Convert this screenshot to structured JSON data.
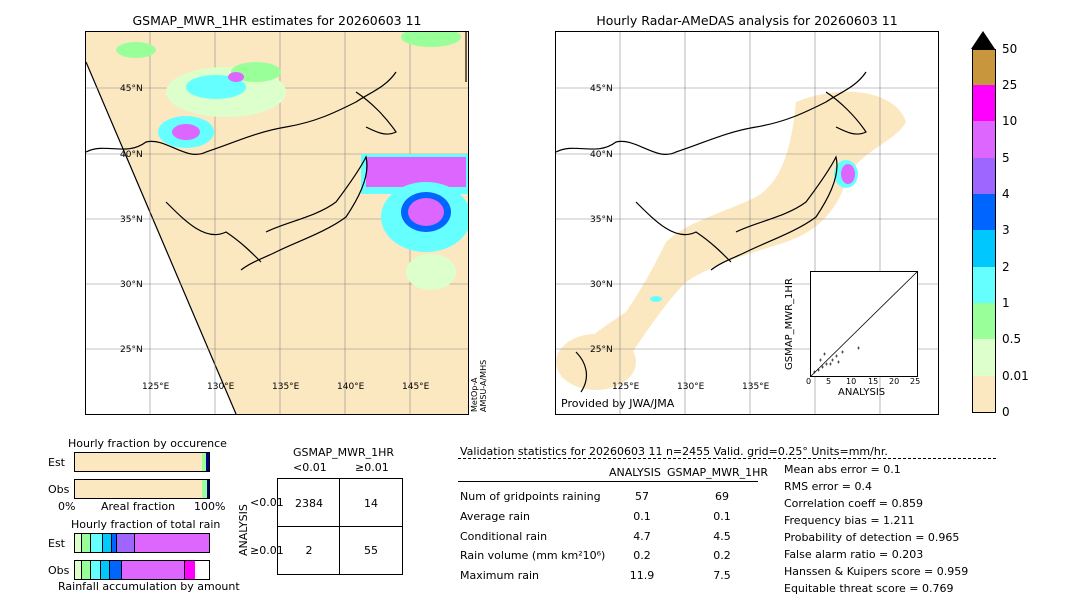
{
  "left_map": {
    "title": "GSMAP_MWR_1HR estimates for 20260603 11",
    "lat_labels": [
      "45°N",
      "40°N",
      "35°N",
      "30°N",
      "25°N"
    ],
    "lon_labels": [
      "125°E",
      "130°E",
      "135°E",
      "140°E",
      "145°E"
    ],
    "side_text_1": "MetOp-A",
    "side_text_2": "AMSU-A/MHS"
  },
  "right_map": {
    "title": "Hourly Radar-AMeDAS analysis for 20260603 11",
    "lat_labels": [
      "45°N",
      "40°N",
      "35°N",
      "30°N",
      "25°N"
    ],
    "lon_labels": [
      "125°E",
      "130°E",
      "135°E"
    ],
    "credit": "Provided by JWA/JMA"
  },
  "colorbar": {
    "labels": [
      "50",
      "25",
      "10",
      "5",
      "4",
      "3",
      "2",
      "1",
      "0.5",
      "0.01",
      "0"
    ],
    "colors": [
      "#c8963c",
      "#ff00ff",
      "#dd66ff",
      "#9f66ff",
      "#0064ff",
      "#00c8ff",
      "#66ffff",
      "#99ff99",
      "#ddffcc",
      "#fce8c0"
    ]
  },
  "scatter_inset": {
    "xlabel": "ANALYSIS",
    "ylabel": "GSMAP_MWR_1HR",
    "ticks": [
      "0",
      "5",
      "10",
      "15",
      "20",
      "25"
    ]
  },
  "fraction_occurrence": {
    "title": "Hourly fraction by occurence",
    "rows": [
      "Est",
      "Obs"
    ],
    "axis_left": "0%",
    "axis_mid": "Areal fraction",
    "axis_right": "100%"
  },
  "fraction_total": {
    "title": "Hourly fraction of total rain",
    "rows": [
      "Est",
      "Obs"
    ],
    "footer": "Rainfall accumulation by amount"
  },
  "contingency": {
    "title": "GSMAP_MWR_1HR",
    "col_lt": "<0.01",
    "col_ge": "≥0.01",
    "row_axis": "ANALYSIS",
    "row_lt": "<0.01",
    "row_ge": "≥0.01",
    "cells": [
      "2384",
      "14",
      "2",
      "55"
    ]
  },
  "validation": {
    "header": "Validation statistics for 20260603 11  n=2455 Valid. grid=0.25° Units=mm/hr.",
    "col_analysis": "ANALYSIS",
    "col_gsmap": "GSMAP_MWR_1HR",
    "rows": [
      {
        "label": "Num of gridpoints raining",
        "a": "57",
        "g": "69"
      },
      {
        "label": "Average rain",
        "a": "0.1",
        "g": "0.1"
      },
      {
        "label": "Conditional rain",
        "a": "4.7",
        "g": "4.5"
      },
      {
        "label": "Rain volume (mm km²10⁶)",
        "a": "0.2",
        "g": "0.2"
      },
      {
        "label": "Maximum rain",
        "a": "11.9",
        "g": "7.5"
      }
    ],
    "scores": [
      "Mean abs error =    0.1",
      "RMS error =    0.4",
      "Correlation coeff =  0.859",
      "Frequency bias =  1.211",
      "Probability of detection =  0.965",
      "False alarm ratio =  0.203",
      "Hanssen & Kuipers score =  0.959",
      "Equitable threat score =  0.769"
    ]
  }
}
